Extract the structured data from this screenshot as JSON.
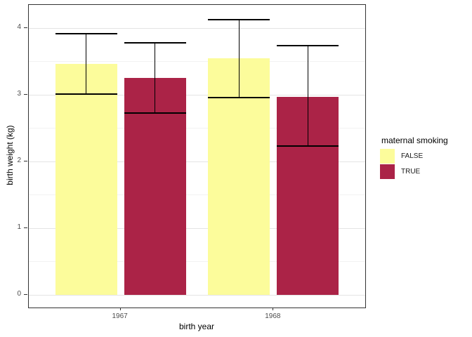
{
  "chart_data": {
    "type": "bar",
    "xlabel": "birth year",
    "ylabel": "birth weight (kg)",
    "legend_title": "maternal smoking",
    "legend_position": "right",
    "categories": [
      "1967",
      "1968"
    ],
    "series": [
      {
        "name": "FALSE",
        "color": "#FCFC9B",
        "values": [
          3.46,
          3.54
        ],
        "error_low": [
          3.01,
          2.96
        ],
        "error_high": [
          3.91,
          4.12
        ]
      },
      {
        "name": "TRUE",
        "color": "#AB2347",
        "values": [
          3.25,
          2.97
        ],
        "error_low": [
          2.72,
          2.23
        ],
        "error_high": [
          3.78,
          3.73
        ]
      }
    ],
    "ylim": [
      0,
      4.35
    ],
    "yticks": [
      "0",
      "1",
      "2",
      "3",
      "4"
    ],
    "ytick_values": [
      0,
      1,
      2,
      3,
      4
    ],
    "minor_grid_values": [
      0.5,
      1.5,
      2.5,
      3.5
    ],
    "grid": true,
    "errorbar_color": "#000000"
  },
  "style": {
    "background": "#FFFFFF",
    "panel_border": "#333333",
    "grid_major": "#E4E4E4",
    "grid_minor": "#F2F2F2",
    "axis_text_color": "#4D4D4D",
    "axis_title_color": "#000000"
  }
}
